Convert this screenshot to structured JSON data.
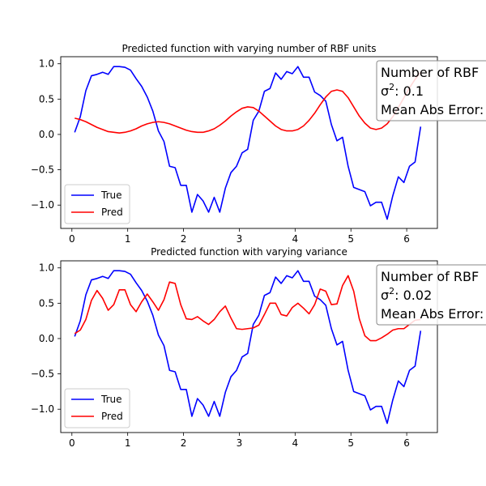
{
  "chart_data": [
    {
      "type": "line",
      "title": "Predicted function with varying number of RBF units",
      "xlabel": "",
      "ylabel": "",
      "xlim": [
        -0.2,
        6.55
      ],
      "ylim": [
        -1.33,
        1.1
      ],
      "xticks": [
        0,
        1,
        2,
        3,
        4,
        5,
        6
      ],
      "yticks": [
        -1.0,
        -0.5,
        0.0,
        0.5,
        1.0
      ],
      "xtick_labels": [
        "0",
        "1",
        "2",
        "3",
        "4",
        "5",
        "6"
      ],
      "ytick_labels": [
        "−1.0",
        "−0.5",
        "0.0",
        "0.5",
        "1.0"
      ],
      "grid": false,
      "legend_position": "lower-left",
      "annotation": {
        "line1": "Number of RBF",
        "line2_prefix": "σ",
        "line2_sup": "2",
        "line2_rest": ": 0.1",
        "line3": "Mean Abs Error:"
      },
      "series": [
        {
          "name": "True",
          "color": "#0000ff",
          "x": [
            0.05,
            0.15,
            0.25,
            0.35,
            0.45,
            0.55,
            0.65,
            0.75,
            0.85,
            0.95,
            1.05,
            1.15,
            1.25,
            1.35,
            1.45,
            1.55,
            1.65,
            1.75,
            1.85,
            1.95,
            2.05,
            2.15,
            2.25,
            2.35,
            2.45,
            2.55,
            2.65,
            2.75,
            2.85,
            2.95,
            3.05,
            3.15,
            3.25,
            3.35,
            3.45,
            3.55,
            3.65,
            3.75,
            3.85,
            3.95,
            4.05,
            4.15,
            4.25,
            4.35,
            4.45,
            4.55,
            4.65,
            4.75,
            4.85,
            4.95,
            5.05,
            5.15,
            5.25,
            5.35,
            5.45,
            5.55,
            5.65,
            5.75,
            5.85,
            5.95,
            6.05,
            6.15,
            6.25
          ],
          "y": [
            0.03,
            0.25,
            0.62,
            0.83,
            0.85,
            0.88,
            0.85,
            0.96,
            0.96,
            0.95,
            0.91,
            0.79,
            0.68,
            0.53,
            0.33,
            0.05,
            -0.1,
            -0.45,
            -0.47,
            -0.72,
            -0.72,
            -1.1,
            -0.85,
            -0.94,
            -1.1,
            -0.89,
            -1.1,
            -0.76,
            -0.54,
            -0.45,
            -0.26,
            -0.21,
            0.2,
            0.33,
            0.61,
            0.65,
            0.87,
            0.78,
            0.89,
            0.86,
            0.96,
            0.81,
            0.81,
            0.6,
            0.55,
            0.47,
            0.14,
            -0.09,
            -0.04,
            -0.45,
            -0.75,
            -0.78,
            -0.81,
            -1.01,
            -0.96,
            -0.96,
            -1.2,
            -0.87,
            -0.6,
            -0.68,
            -0.45,
            -0.39,
            0.11
          ]
        },
        {
          "name": "Pred",
          "color": "#ff0000",
          "x": [
            0.05,
            0.15,
            0.25,
            0.35,
            0.45,
            0.55,
            0.65,
            0.75,
            0.85,
            0.95,
            1.05,
            1.15,
            1.25,
            1.35,
            1.45,
            1.55,
            1.65,
            1.75,
            1.85,
            1.95,
            2.05,
            2.15,
            2.25,
            2.35,
            2.45,
            2.55,
            2.65,
            2.75,
            2.85,
            2.95,
            3.05,
            3.15,
            3.25,
            3.35,
            3.45,
            3.55,
            3.65,
            3.75,
            3.85,
            3.95,
            4.05,
            4.15,
            4.25,
            4.35,
            4.45,
            4.55,
            4.65,
            4.75,
            4.85,
            4.95,
            5.05,
            5.15,
            5.25,
            5.35,
            5.45,
            5.55,
            5.65,
            5.75,
            5.85,
            5.95,
            6.05,
            6.15,
            6.25
          ],
          "y": [
            0.23,
            0.21,
            0.18,
            0.14,
            0.1,
            0.07,
            0.04,
            0.03,
            0.02,
            0.03,
            0.05,
            0.08,
            0.12,
            0.15,
            0.17,
            0.18,
            0.17,
            0.15,
            0.12,
            0.09,
            0.06,
            0.04,
            0.03,
            0.03,
            0.05,
            0.08,
            0.13,
            0.19,
            0.26,
            0.32,
            0.37,
            0.39,
            0.38,
            0.33,
            0.26,
            0.19,
            0.12,
            0.07,
            0.05,
            0.05,
            0.07,
            0.12,
            0.2,
            0.3,
            0.42,
            0.53,
            0.61,
            0.63,
            0.61,
            0.52,
            0.39,
            0.26,
            0.16,
            0.09,
            0.07,
            0.09,
            0.15,
            0.25,
            0.38,
            0.52,
            0.66,
            0.78,
            0.88
          ]
        }
      ]
    },
    {
      "type": "line",
      "title": "Predicted function with varying variance",
      "xlabel": "",
      "ylabel": "",
      "xlim": [
        -0.2,
        6.55
      ],
      "ylim": [
        -1.33,
        1.1
      ],
      "xticks": [
        0,
        1,
        2,
        3,
        4,
        5,
        6
      ],
      "yticks": [
        -1.0,
        -0.5,
        0.0,
        0.5,
        1.0
      ],
      "xtick_labels": [
        "0",
        "1",
        "2",
        "3",
        "4",
        "5",
        "6"
      ],
      "ytick_labels": [
        "−1.0",
        "−0.5",
        "0.0",
        "0.5",
        "1.0"
      ],
      "grid": false,
      "legend_position": "lower-left",
      "annotation": {
        "line1": "Number of RBF",
        "line2_prefix": "σ",
        "line2_sup": "2",
        "line2_rest": ": 0.02",
        "line3": "Mean Abs Error:"
      },
      "series": [
        {
          "name": "True",
          "color": "#0000ff",
          "x": [
            0.05,
            0.15,
            0.25,
            0.35,
            0.45,
            0.55,
            0.65,
            0.75,
            0.85,
            0.95,
            1.05,
            1.15,
            1.25,
            1.35,
            1.45,
            1.55,
            1.65,
            1.75,
            1.85,
            1.95,
            2.05,
            2.15,
            2.25,
            2.35,
            2.45,
            2.55,
            2.65,
            2.75,
            2.85,
            2.95,
            3.05,
            3.15,
            3.25,
            3.35,
            3.45,
            3.55,
            3.65,
            3.75,
            3.85,
            3.95,
            4.05,
            4.15,
            4.25,
            4.35,
            4.45,
            4.55,
            4.65,
            4.75,
            4.85,
            4.95,
            5.05,
            5.15,
            5.25,
            5.35,
            5.45,
            5.55,
            5.65,
            5.75,
            5.85,
            5.95,
            6.05,
            6.15,
            6.25
          ],
          "y": [
            0.03,
            0.25,
            0.62,
            0.83,
            0.85,
            0.88,
            0.85,
            0.96,
            0.96,
            0.95,
            0.91,
            0.79,
            0.68,
            0.53,
            0.33,
            0.05,
            -0.1,
            -0.45,
            -0.47,
            -0.72,
            -0.72,
            -1.1,
            -0.85,
            -0.94,
            -1.1,
            -0.89,
            -1.1,
            -0.76,
            -0.54,
            -0.45,
            -0.26,
            -0.21,
            0.2,
            0.33,
            0.61,
            0.65,
            0.87,
            0.78,
            0.89,
            0.86,
            0.96,
            0.81,
            0.81,
            0.6,
            0.55,
            0.47,
            0.14,
            -0.09,
            -0.04,
            -0.45,
            -0.75,
            -0.78,
            -0.81,
            -1.01,
            -0.96,
            -0.96,
            -1.2,
            -0.87,
            -0.6,
            -0.68,
            -0.45,
            -0.39,
            0.11
          ]
        },
        {
          "name": "Pred",
          "color": "#ff0000",
          "x": [
            0.05,
            0.15,
            0.25,
            0.35,
            0.45,
            0.55,
            0.65,
            0.75,
            0.85,
            0.95,
            1.05,
            1.15,
            1.25,
            1.35,
            1.45,
            1.55,
            1.65,
            1.75,
            1.85,
            1.95,
            2.05,
            2.15,
            2.25,
            2.35,
            2.45,
            2.55,
            2.65,
            2.75,
            2.85,
            2.95,
            3.05,
            3.15,
            3.25,
            3.35,
            3.45,
            3.55,
            3.65,
            3.75,
            3.85,
            3.95,
            4.05,
            4.15,
            4.25,
            4.35,
            4.45,
            4.55,
            4.65,
            4.75,
            4.85,
            4.95,
            5.05,
            5.15,
            5.25,
            5.35,
            5.45,
            5.55,
            5.65,
            5.75,
            5.85,
            5.95,
            6.05,
            6.15,
            6.25
          ],
          "y": [
            0.07,
            0.12,
            0.27,
            0.54,
            0.68,
            0.57,
            0.4,
            0.48,
            0.69,
            0.69,
            0.48,
            0.38,
            0.52,
            0.63,
            0.52,
            0.4,
            0.55,
            0.8,
            0.78,
            0.48,
            0.28,
            0.27,
            0.31,
            0.25,
            0.2,
            0.27,
            0.38,
            0.46,
            0.29,
            0.14,
            0.13,
            0.14,
            0.15,
            0.19,
            0.34,
            0.5,
            0.5,
            0.34,
            0.32,
            0.44,
            0.5,
            0.43,
            0.35,
            0.48,
            0.7,
            0.67,
            0.48,
            0.49,
            0.75,
            0.89,
            0.67,
            0.28,
            0.04,
            -0.03,
            -0.03,
            0.01,
            0.06,
            0.12,
            0.14,
            0.14,
            0.2,
            0.26,
            0.27
          ]
        }
      ]
    }
  ]
}
